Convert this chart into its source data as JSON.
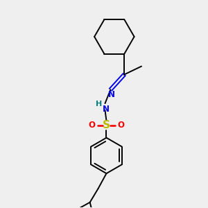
{
  "background_color": "#efefef",
  "atom_colors": {
    "N": "#0000ee",
    "NH": "#008080",
    "S": "#bbbb00",
    "O": "#ff0000",
    "C": "#000000"
  },
  "figsize": [
    3.0,
    3.0
  ],
  "dpi": 100
}
